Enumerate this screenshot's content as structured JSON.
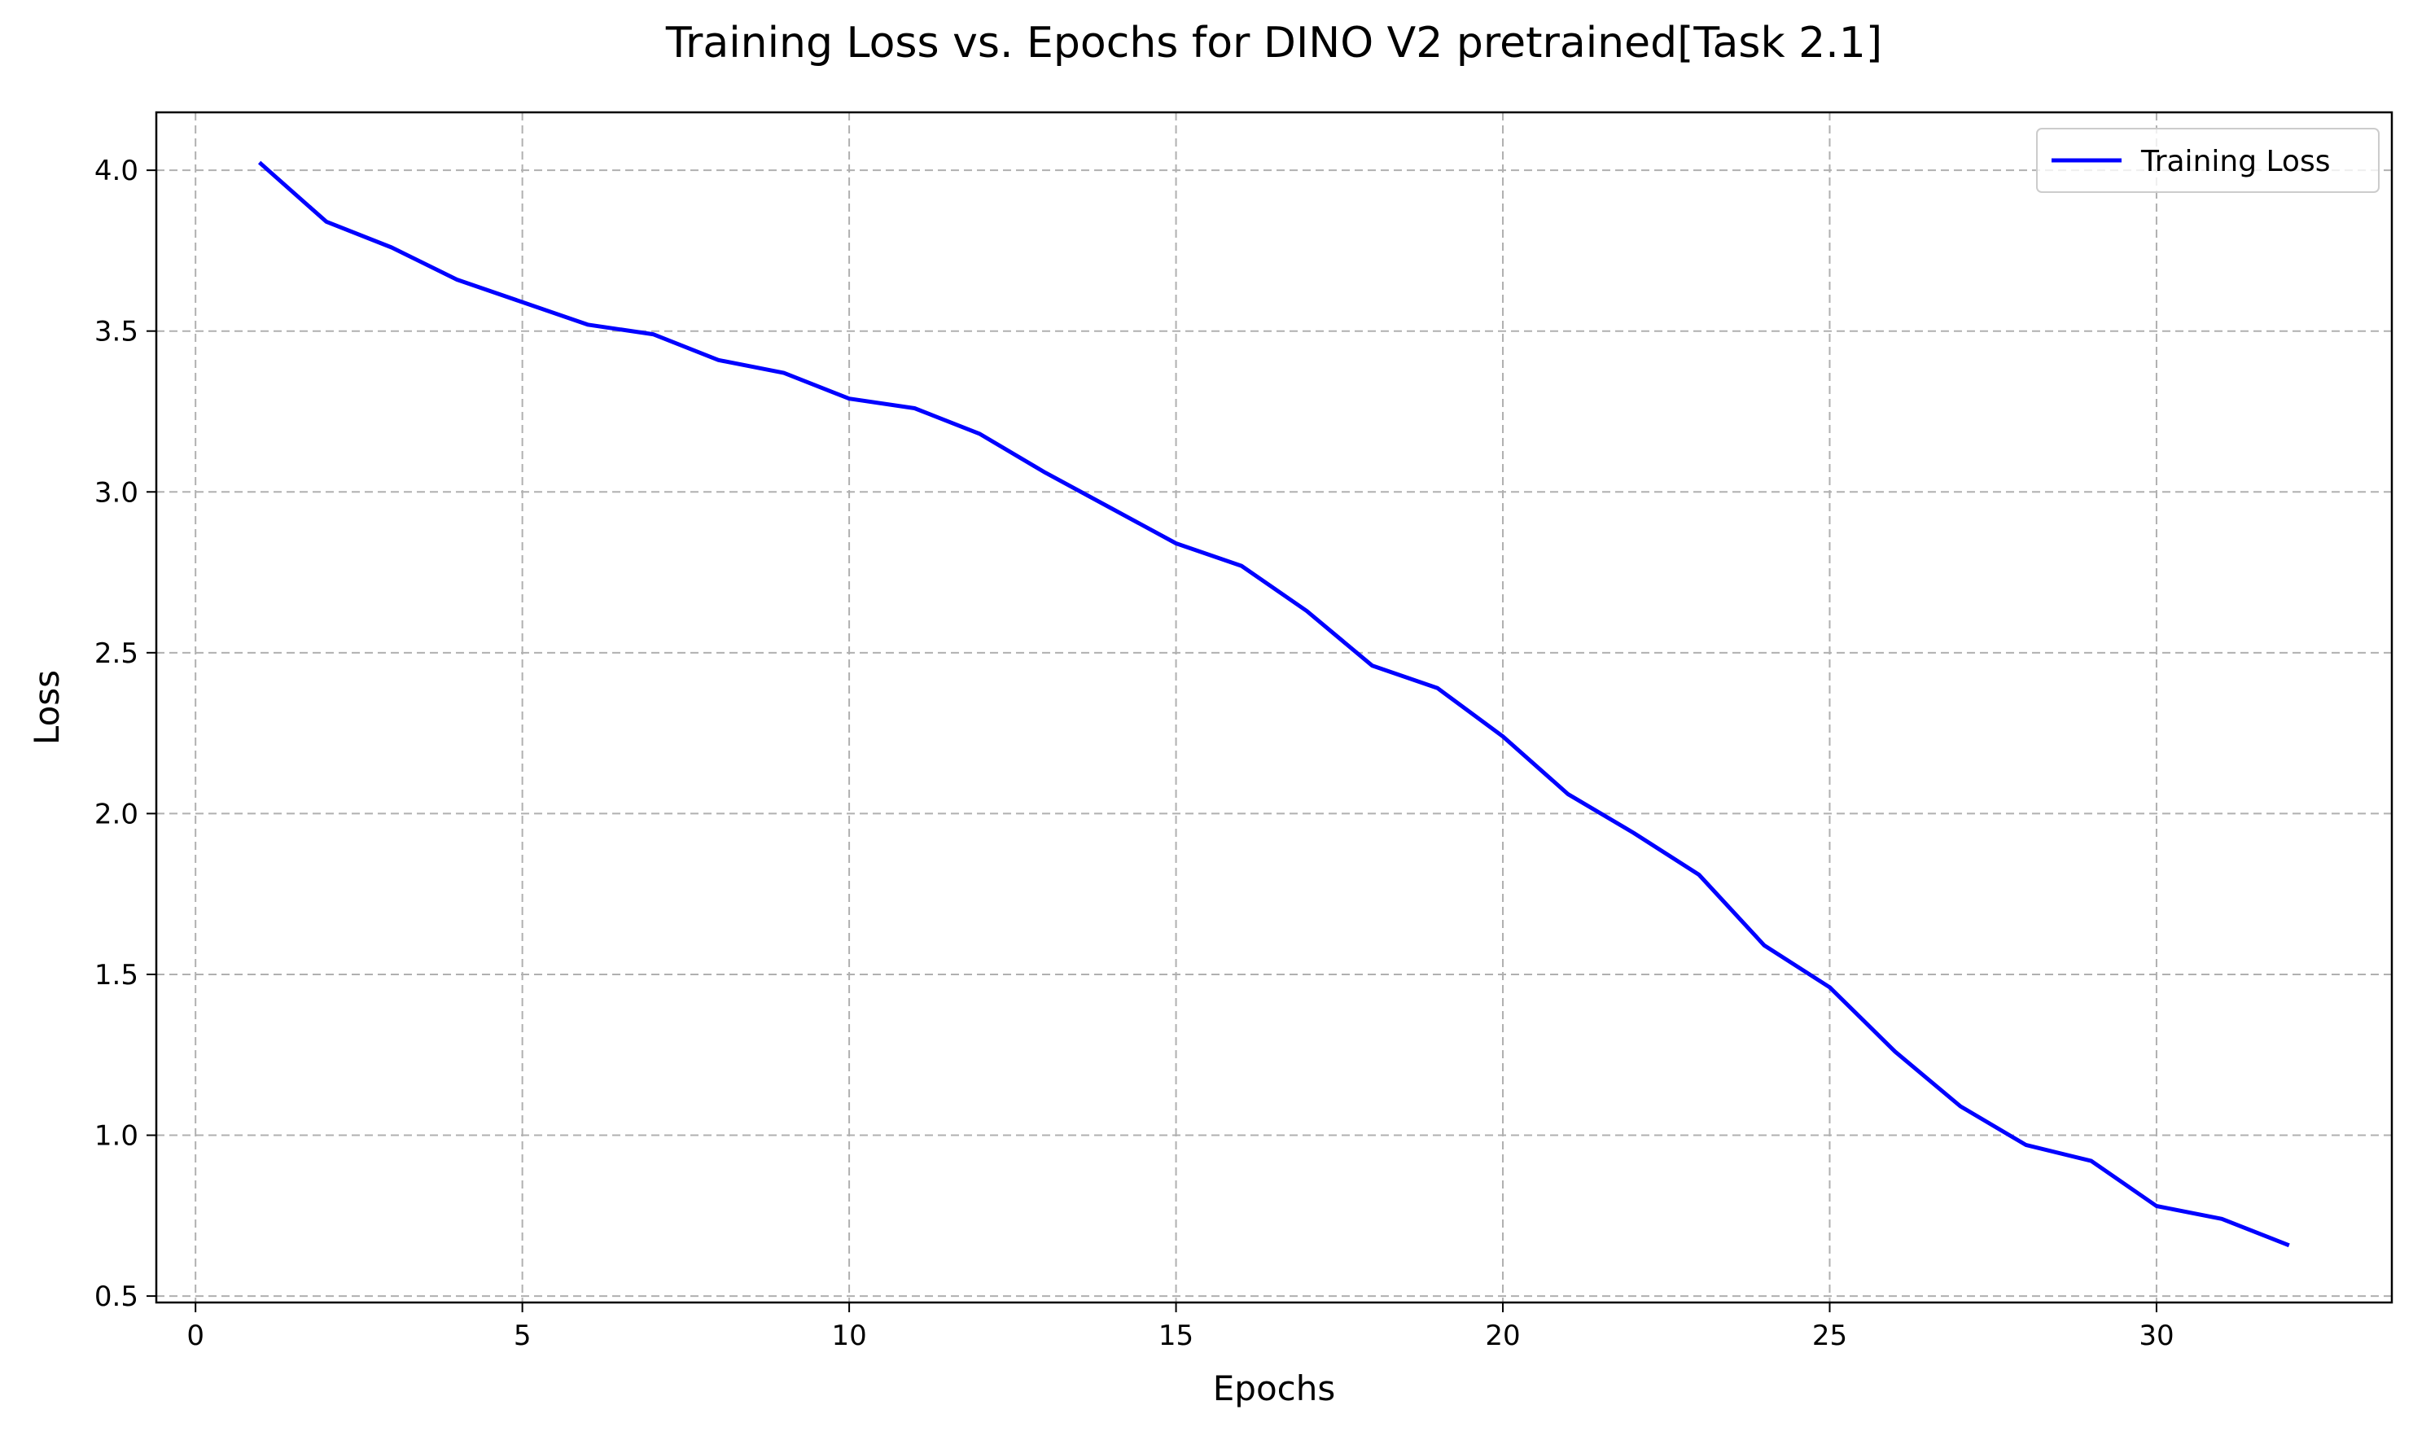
{
  "chart_data": {
    "type": "line",
    "title": "Training Loss vs. Epochs for DINO V2 pretrained[Task 2.1]",
    "xlabel": "Epochs",
    "ylabel": "Loss",
    "xlim": [
      -0.6,
      33.6
    ],
    "ylim": [
      0.48,
      4.18
    ],
    "xticks": [
      0,
      5,
      10,
      15,
      20,
      25,
      30
    ],
    "xtick_labels": [
      "0",
      "5",
      "10",
      "15",
      "20",
      "25",
      "30"
    ],
    "yticks": [
      0.5,
      1.0,
      1.5,
      2.0,
      2.5,
      3.0,
      3.5,
      4.0
    ],
    "ytick_labels": [
      "0.5",
      "1.0",
      "1.5",
      "2.0",
      "2.5",
      "3.0",
      "3.5",
      "4.0"
    ],
    "grid": true,
    "legend_position": "top-right",
    "series": [
      {
        "name": "Training Loss",
        "color": "#0000ff",
        "x": [
          1,
          2,
          3,
          4,
          5,
          6,
          7,
          8,
          9,
          10,
          11,
          12,
          13,
          14,
          15,
          16,
          17,
          18,
          19,
          20,
          21,
          22,
          23,
          24,
          25,
          26,
          27,
          28,
          29,
          30,
          31,
          32
        ],
        "y": [
          4.02,
          3.84,
          3.76,
          3.66,
          3.59,
          3.52,
          3.49,
          3.41,
          3.37,
          3.29,
          3.26,
          3.18,
          3.06,
          2.95,
          2.84,
          2.77,
          2.63,
          2.46,
          2.39,
          2.24,
          2.06,
          1.94,
          1.81,
          1.59,
          1.46,
          1.26,
          1.09,
          0.97,
          0.92,
          0.78,
          0.74,
          0.66
        ]
      }
    ]
  }
}
